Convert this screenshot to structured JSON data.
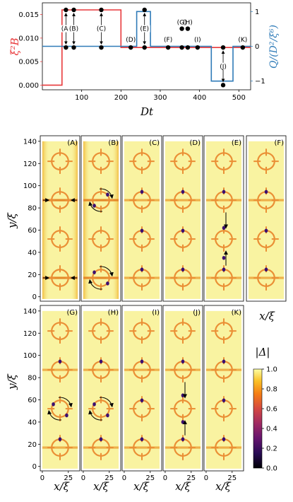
{
  "chart_data": [
    {
      "type": "line",
      "xlabel": "Dt",
      "ylabel_left": "ξ²B",
      "ylabel_right": "Q/(D²/ξ⁶)",
      "xlim": [
        0,
        530
      ],
      "ylim_left": [
        -0.001,
        0.0175
      ],
      "ylim_right": [
        -1.25,
        1.25
      ],
      "x_ticks": [
        "100",
        "200",
        "300",
        "400",
        "500"
      ],
      "y_ticks_left": [
        "0.000",
        "0.005",
        "0.010",
        "0.015"
      ],
      "y_ticks_right": [
        "−1",
        "0",
        "1"
      ],
      "colors": {
        "left": "#e8393b",
        "right": "#2f7bb8"
      },
      "series": [
        {
          "axis": "left",
          "x": [
            0,
            50,
            50,
            200,
            200,
            530
          ],
          "y": [
            0.0,
            0.0,
            0.016,
            0.016,
            0.008,
            0.008
          ]
        },
        {
          "axis": "right",
          "x": [
            0,
            240,
            240,
            275,
            275,
            430,
            430,
            485,
            485,
            530
          ],
          "y": [
            0,
            0,
            1,
            1,
            0,
            0,
            -1,
            -1,
            0,
            0
          ]
        }
      ],
      "annotations": [
        {
          "label": "(A)",
          "x": 60,
          "y_top": 0.016,
          "y_bot": 0.008,
          "arrow": "up"
        },
        {
          "label": "(B)",
          "x": 80,
          "y_top": 0.016,
          "y_bot": 0.008,
          "arrow": "up"
        },
        {
          "label": "(C)",
          "x": 150,
          "y_top": 0.016,
          "y_bot": 0.008,
          "arrow": "up"
        },
        {
          "label": "(D)",
          "x": 225,
          "y_top": null,
          "y_bot": 0.008,
          "arrow": "none"
        },
        {
          "label": "(E)",
          "x": 260,
          "y_top": 0.016,
          "y_bot": 0.008,
          "arrow": "up"
        },
        {
          "label": "(F)",
          "x": 320,
          "y_top": null,
          "y_bot": 0.008,
          "arrow": "none"
        },
        {
          "label": "(G)",
          "x": 355,
          "y_top": 0.012,
          "y_bot": 0.008,
          "arrow": "none"
        },
        {
          "label": "(H)",
          "x": 370,
          "y_top": 0.012,
          "y_bot": 0.008,
          "arrow": "none"
        },
        {
          "label": "(I)",
          "x": 395,
          "y_top": null,
          "y_bot": 0.008,
          "arrow": "none"
        },
        {
          "label": "(J)",
          "x": 460,
          "y_top": 0.008,
          "y_bot": 0.0,
          "arrow": "down"
        },
        {
          "label": "(K)",
          "x": 510,
          "y_top": null,
          "y_bot": 0.008,
          "arrow": "none"
        }
      ]
    },
    {
      "type": "heatmap",
      "ylabel": "y/ξ",
      "xlabel": "x/ξ",
      "x_ticks": [
        "0",
        "25"
      ],
      "y_ticks": [
        "0",
        "20",
        "40",
        "60",
        "80",
        "100",
        "120",
        "140"
      ],
      "rows": [
        {
          "panels": [
            "(A)",
            "(B)",
            "(C)",
            "(D)",
            "(E)",
            "(F)"
          ]
        },
        {
          "panels": [
            "(G)",
            "(H)",
            "(I)",
            "(J)",
            "(K)"
          ]
        }
      ],
      "rings_y": [
        17,
        52,
        87,
        122
      ],
      "lines_y": [
        17,
        87
      ],
      "colorbar": {
        "label": "|Δ|",
        "range": [
          0.0,
          1.0
        ],
        "ticks": [
          "0.0",
          "0.2",
          "0.4",
          "0.6",
          "0.8",
          "1.0"
        ]
      }
    }
  ]
}
